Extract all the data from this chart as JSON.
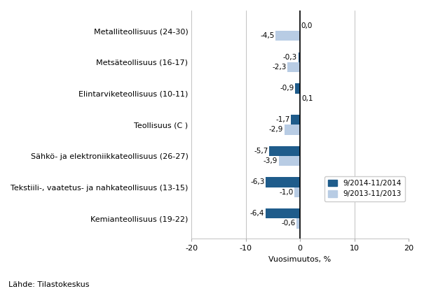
{
  "categories": [
    "Kemianteollisuus (19-22)",
    "Tekstiili-, vaatetus- ja nahkateollisuus (13-15)",
    "Sähkö- ja elektroniikkateollisuus (26-27)",
    "Teollisuus (C )",
    "Elintarviketeollisuus (10-11)",
    "Metsäteollisuus (16-17)",
    "Metalliteollisuus (24-30)"
  ],
  "series1_values": [
    -6.4,
    -6.3,
    -5.7,
    -1.7,
    -0.9,
    -0.3,
    0.0
  ],
  "series2_values": [
    -0.6,
    -1.0,
    -3.9,
    -2.9,
    0.1,
    -2.3,
    -4.5
  ],
  "series1_labels": [
    "-6,4",
    "-6,3",
    "-5,7",
    "-1,7",
    "-0,9",
    "-0,3",
    "0,0"
  ],
  "series2_labels": [
    "-0,6",
    "-1,0",
    "-3,9",
    "-2,9",
    "0,1",
    "-2,3",
    "-4,5"
  ],
  "series1_label": "9/2014-11/2014",
  "series2_label": "9/2013-11/2013",
  "series1_color": "#1F5C8B",
  "series2_color": "#B8CCE4",
  "xlabel": "Vuosimuutos, %",
  "xlim": [
    -20,
    20
  ],
  "xticks": [
    -20,
    -10,
    0,
    10,
    20
  ],
  "footnote": "Lähde: Tilastokeskus",
  "bar_height": 0.32,
  "value_fontsize": 7.5,
  "label_fontsize": 8,
  "tick_fontsize": 8
}
